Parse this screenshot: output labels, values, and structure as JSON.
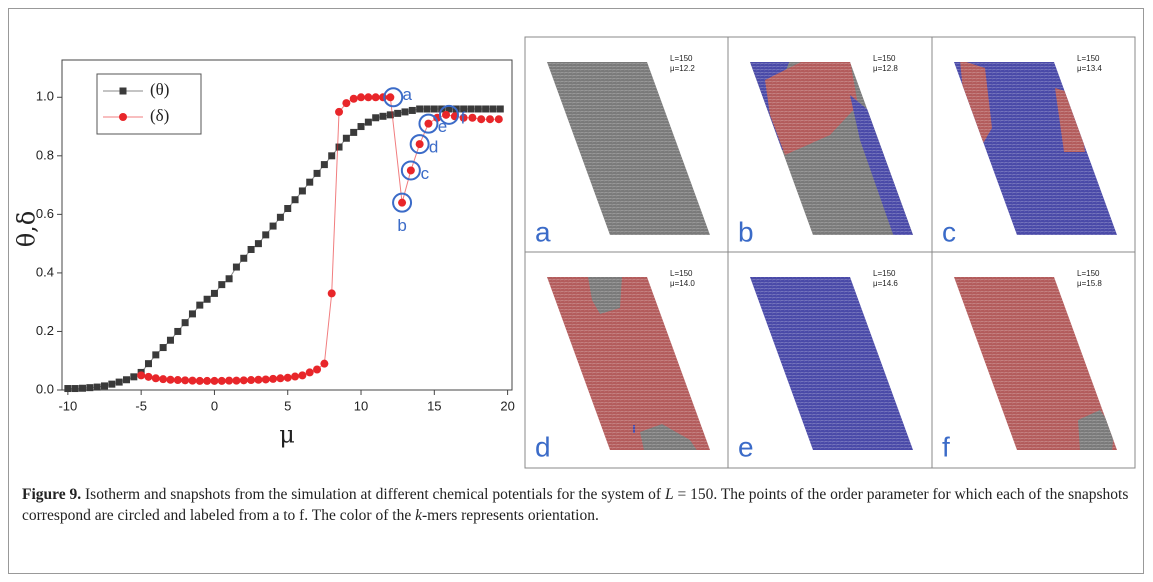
{
  "chart_data": {
    "type": "line",
    "xlabel": "μ",
    "ylabel": "θ,δ",
    "xlim": [
      -10.4,
      20.3
    ],
    "ylim": [
      0,
      1.1
    ],
    "xticks": [
      -10,
      -5,
      0,
      5,
      10,
      15,
      20
    ],
    "yticks": [
      {
        "value": 0,
        "label": "0.0"
      },
      {
        "value": 0.2,
        "label": "0.2"
      },
      {
        "value": 0.4,
        "label": "0.4"
      },
      {
        "value": 0.6,
        "label": "0.6"
      },
      {
        "value": 0.8,
        "label": "0.8"
      },
      {
        "value": 1,
        "label": "1.0"
      }
    ],
    "legend": "upper left",
    "series": [
      {
        "name": "(θ)",
        "color": "#3a3a3a",
        "marker": "square",
        "x": [
          -10,
          -9.5,
          -9,
          -8.5,
          -8,
          -7.5,
          -7,
          -6.5,
          -6,
          -5.5,
          -5,
          -4.5,
          -4,
          -3.5,
          -3,
          -2.5,
          -2,
          -1.5,
          -1,
          -0.5,
          0,
          0.5,
          1,
          1.5,
          2,
          2.5,
          3,
          3.5,
          4,
          4.5,
          5,
          5.5,
          6,
          6.5,
          7,
          7.5,
          8,
          8.5,
          9,
          9.5,
          10,
          10.5,
          11,
          11.5,
          12,
          12.5,
          13,
          13.5,
          14,
          14.5,
          15,
          15.5,
          16,
          16.5,
          17,
          17.5,
          18,
          18.5,
          19,
          19.5
        ],
        "values": [
          0.005,
          0.005,
          0.006,
          0.008,
          0.01,
          0.014,
          0.02,
          0.027,
          0.035,
          0.045,
          0.06,
          0.09,
          0.12,
          0.145,
          0.17,
          0.2,
          0.23,
          0.26,
          0.29,
          0.31,
          0.33,
          0.36,
          0.38,
          0.42,
          0.45,
          0.48,
          0.5,
          0.53,
          0.56,
          0.59,
          0.62,
          0.65,
          0.68,
          0.71,
          0.74,
          0.77,
          0.8,
          0.83,
          0.86,
          0.88,
          0.9,
          0.915,
          0.93,
          0.935,
          0.94,
          0.945,
          0.95,
          0.955,
          0.96,
          0.96,
          0.96,
          0.96,
          0.96,
          0.96,
          0.96,
          0.96,
          0.96,
          0.96,
          0.96,
          0.96
        ]
      },
      {
        "name": "(δ)",
        "color": "#e8262a",
        "marker": "circle",
        "x": [
          -5,
          -4.5,
          -4,
          -3.5,
          -3,
          -2.5,
          -2,
          -1.5,
          -1,
          -0.5,
          0,
          0.5,
          1,
          1.5,
          2,
          2.5,
          3,
          3.5,
          4,
          4.5,
          5,
          5.5,
          6,
          6.5,
          7,
          7.5,
          8,
          8.5,
          9,
          9.5,
          10,
          10.5,
          11,
          11.5,
          12,
          12.8,
          13.4,
          14,
          14.6,
          15.2,
          15.8,
          16.4,
          17,
          17.6,
          18.2,
          18.8,
          19.4
        ],
        "values": [
          0.05,
          0.045,
          0.04,
          0.037,
          0.035,
          0.034,
          0.033,
          0.032,
          0.031,
          0.031,
          0.031,
          0.031,
          0.032,
          0.032,
          0.033,
          0.034,
          0.035,
          0.036,
          0.038,
          0.04,
          0.042,
          0.046,
          0.05,
          0.06,
          0.07,
          0.09,
          0.33,
          0.95,
          0.98,
          0.995,
          1,
          1,
          1,
          1,
          1,
          0.64,
          0.75,
          0.84,
          0.91,
          0.93,
          0.94,
          0.935,
          0.93,
          0.93,
          0.925,
          0.925,
          0.925
        ]
      }
    ],
    "annotations": [
      {
        "text": "a",
        "x": 12.2,
        "y": 1
      },
      {
        "text": "b",
        "x": 12.8,
        "y": 0.64
      },
      {
        "text": "c",
        "x": 13.4,
        "y": 0.75
      },
      {
        "text": "d",
        "x": 14,
        "y": 0.84
      },
      {
        "text": "e",
        "x": 14.6,
        "y": 0.91
      },
      {
        "text": "f",
        "x": 16,
        "y": 0.94
      }
    ]
  },
  "panels": [
    {
      "letter": "a",
      "size": "L=150",
      "mu": "μ=12.2"
    },
    {
      "letter": "b",
      "size": "L=150",
      "mu": "μ=12.8"
    },
    {
      "letter": "c",
      "size": "L=150",
      "mu": "μ=13.4"
    },
    {
      "letter": "d",
      "size": "L=150",
      "mu": "μ=14.0"
    },
    {
      "letter": "e",
      "size": "L=150",
      "mu": "μ=14.6"
    },
    {
      "letter": "f",
      "size": "L=150",
      "mu": "μ=15.8"
    }
  ],
  "caption": {
    "label": "Figure 9.",
    "text1": "Isotherm and snapshots from the simulation at different chemical potentials for the system of ",
    "var1": "L",
    "text2": " = 150. The points of the order parameter for which each of the snapshots correspond are circled and labeled from a to f. The color of the ",
    "var2": "k",
    "text3": "-mers represents orientation."
  }
}
